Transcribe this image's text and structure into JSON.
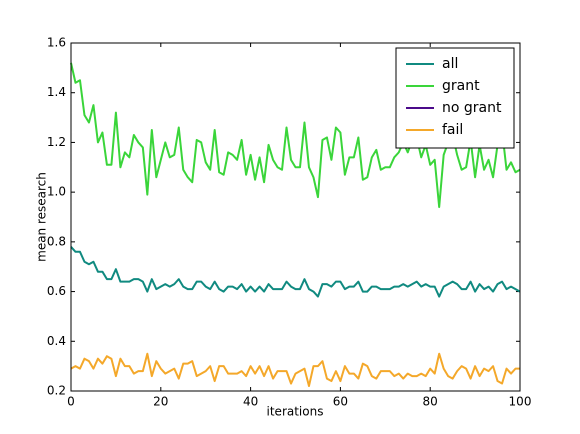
{
  "chart_data": {
    "type": "line",
    "xlabel": "iterations",
    "ylabel": "mean research",
    "x": [
      0,
      1,
      2,
      3,
      4,
      5,
      6,
      7,
      8,
      9,
      10,
      11,
      12,
      13,
      14,
      15,
      16,
      17,
      18,
      19,
      20,
      21,
      22,
      23,
      24,
      25,
      26,
      27,
      28,
      29,
      30,
      31,
      32,
      33,
      34,
      35,
      36,
      37,
      38,
      39,
      40,
      41,
      42,
      43,
      44,
      45,
      46,
      47,
      48,
      49,
      50,
      51,
      52,
      53,
      54,
      55,
      56,
      57,
      58,
      59,
      60,
      61,
      62,
      63,
      64,
      65,
      66,
      67,
      68,
      69,
      70,
      71,
      72,
      73,
      74,
      75,
      76,
      77,
      78,
      79,
      80,
      81,
      82,
      83,
      84,
      85,
      86,
      87,
      88,
      89,
      90,
      91,
      92,
      93,
      94,
      95,
      96,
      97,
      98,
      99,
      100
    ],
    "xlim": [
      0,
      100
    ],
    "xticks": [
      0,
      20,
      40,
      60,
      80,
      100
    ],
    "ylim": [
      0.2,
      1.6
    ],
    "yticks": [
      0.2,
      0.4,
      0.6,
      0.8,
      {
        "value": 1,
        "label": "1.0"
      },
      1.2,
      1.4,
      1.6
    ],
    "grid": false,
    "legend": "upper right",
    "series": [
      {
        "name": "all",
        "color": "#108a80",
        "values": [
          0.78,
          0.76,
          0.76,
          0.72,
          0.71,
          0.72,
          0.68,
          0.68,
          0.65,
          0.65,
          0.69,
          0.64,
          0.64,
          0.64,
          0.65,
          0.65,
          0.64,
          0.6,
          0.65,
          0.61,
          0.62,
          0.63,
          0.62,
          0.63,
          0.65,
          0.62,
          0.61,
          0.61,
          0.64,
          0.64,
          0.62,
          0.61,
          0.64,
          0.61,
          0.6,
          0.62,
          0.62,
          0.61,
          0.63,
          0.6,
          0.62,
          0.6,
          0.62,
          0.6,
          0.63,
          0.61,
          0.61,
          0.61,
          0.64,
          0.62,
          0.61,
          0.61,
          0.65,
          0.61,
          0.6,
          0.58,
          0.63,
          0.63,
          0.62,
          0.64,
          0.64,
          0.61,
          0.62,
          0.62,
          0.64,
          0.6,
          0.6,
          0.62,
          0.62,
          0.61,
          0.61,
          0.61,
          0.62,
          0.62,
          0.63,
          0.62,
          0.63,
          0.64,
          0.62,
          0.63,
          0.62,
          0.62,
          0.58,
          0.62,
          0.63,
          0.64,
          0.63,
          0.61,
          0.61,
          0.64,
          0.6,
          0.63,
          0.61,
          0.62,
          0.6,
          0.63,
          0.64,
          0.61,
          0.62,
          0.61,
          0.6
        ]
      },
      {
        "name": "grant",
        "color": "#3ad53a",
        "values": [
          1.52,
          1.44,
          1.45,
          1.31,
          1.28,
          1.35,
          1.2,
          1.24,
          1.11,
          1.11,
          1.32,
          1.1,
          1.16,
          1.14,
          1.23,
          1.2,
          1.18,
          0.99,
          1.25,
          1.06,
          1.13,
          1.2,
          1.14,
          1.15,
          1.26,
          1.09,
          1.06,
          1.04,
          1.21,
          1.2,
          1.12,
          1.09,
          1.25,
          1.08,
          1.07,
          1.16,
          1.15,
          1.13,
          1.21,
          1.07,
          1.15,
          1.05,
          1.14,
          1.04,
          1.19,
          1.13,
          1.1,
          1.09,
          1.26,
          1.13,
          1.1,
          1.1,
          1.28,
          1.1,
          1.06,
          0.98,
          1.21,
          1.22,
          1.13,
          1.26,
          1.24,
          1.07,
          1.14,
          1.14,
          1.22,
          1.05,
          1.06,
          1.14,
          1.17,
          1.09,
          1.1,
          1.1,
          1.14,
          1.16,
          1.2,
          1.16,
          1.21,
          1.22,
          1.14,
          1.19,
          1.11,
          1.13,
          0.94,
          1.15,
          1.2,
          1.23,
          1.15,
          1.09,
          1.1,
          1.21,
          1.06,
          1.19,
          1.09,
          1.13,
          1.06,
          1.19,
          1.25,
          1.09,
          1.12,
          1.08,
          1.09
        ]
      },
      {
        "name": "no grant",
        "color": "#4b0a8a",
        "values": [
          null,
          null,
          null,
          null,
          null,
          null,
          null,
          null,
          null,
          null,
          null,
          null,
          null,
          null,
          null,
          null,
          null,
          null,
          null,
          null,
          null,
          null,
          null,
          null,
          null,
          null,
          null,
          null,
          null,
          null,
          null,
          null,
          null,
          null,
          null,
          null,
          null,
          null,
          null,
          null,
          null,
          null,
          null,
          null,
          null,
          null,
          null,
          null,
          null,
          null,
          null,
          null,
          null,
          null,
          null,
          null,
          null,
          null,
          null,
          null,
          null,
          null,
          null,
          null,
          null,
          null,
          null,
          null,
          null,
          null,
          null,
          null,
          null,
          null,
          null,
          null,
          null,
          null,
          null,
          null,
          null,
          null,
          null,
          null,
          null,
          null,
          null,
          null,
          null,
          null,
          null,
          null,
          null,
          null,
          null,
          null,
          null,
          null,
          null,
          null,
          null
        ]
      },
      {
        "name": "fail",
        "color": "#f4a82a",
        "values": [
          0.29,
          0.3,
          0.29,
          0.33,
          0.32,
          0.29,
          0.33,
          0.31,
          0.34,
          0.33,
          0.26,
          0.33,
          0.3,
          0.3,
          0.27,
          0.28,
          0.28,
          0.35,
          0.26,
          0.32,
          0.29,
          0.27,
          0.28,
          0.29,
          0.25,
          0.31,
          0.31,
          0.32,
          0.26,
          0.27,
          0.28,
          0.3,
          0.24,
          0.3,
          0.3,
          0.27,
          0.27,
          0.27,
          0.28,
          0.26,
          0.3,
          0.27,
          0.3,
          0.26,
          0.3,
          0.25,
          0.28,
          0.28,
          0.28,
          0.23,
          0.27,
          0.28,
          0.29,
          0.22,
          0.3,
          0.3,
          0.32,
          0.25,
          0.24,
          0.28,
          0.24,
          0.3,
          0.27,
          0.27,
          0.25,
          0.31,
          0.3,
          0.26,
          0.25,
          0.28,
          0.28,
          0.28,
          0.26,
          0.27,
          0.25,
          0.27,
          0.26,
          0.26,
          0.27,
          0.26,
          0.29,
          0.27,
          0.35,
          0.29,
          0.26,
          0.25,
          0.28,
          0.3,
          0.29,
          0.25,
          0.3,
          0.26,
          0.29,
          0.28,
          0.3,
          0.24,
          0.23,
          0.29,
          0.27,
          0.29,
          0.29
        ]
      }
    ]
  }
}
